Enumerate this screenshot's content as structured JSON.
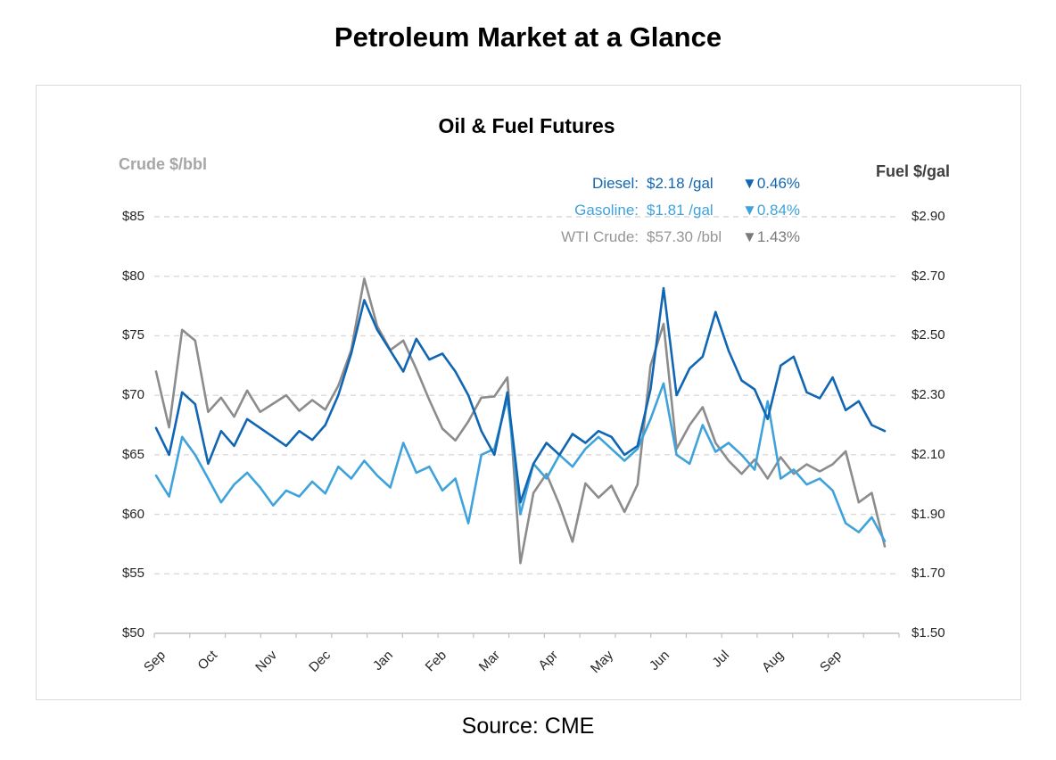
{
  "header": {
    "title": "Petroleum Market at a Glance"
  },
  "footer": {
    "source": "Source: CME"
  },
  "chart_data": {
    "type": "line",
    "title": "Oil & Fuel Futures",
    "grid": "dashed-horizontal",
    "categories": [
      "Sep",
      "Oct",
      "Nov",
      "Dec",
      "Jan",
      "Feb",
      "Mar",
      "Apr",
      "May",
      "Jun",
      "Jul",
      "Aug",
      "Sep"
    ],
    "left_axis": {
      "label": "Crude $/bbl",
      "ylim": [
        50,
        85
      ],
      "tick_values": [
        85,
        80,
        75,
        70,
        65,
        60,
        55,
        50
      ],
      "tick_labels": [
        "$85",
        "$80",
        "$75",
        "$70",
        "$65",
        "$60",
        "$55",
        "$50"
      ]
    },
    "right_axis": {
      "label": "Fuel $/gal",
      "ylim": [
        1.5,
        2.9
      ],
      "tick_values": [
        2.9,
        2.7,
        2.5,
        2.3,
        2.1,
        1.9,
        1.7,
        1.5
      ],
      "tick_labels": [
        "$2.90",
        "$2.70",
        "$2.50",
        "$2.30",
        "$2.10",
        "$1.90",
        "$1.70",
        "$1.50"
      ]
    },
    "colors": {
      "diesel": "#1066b2",
      "gasoline": "#3fa3db",
      "wti": "#8c8c8c",
      "wti_legend_text": "#969696",
      "gridline": "#d9d9d9",
      "axis_line": "#bfbfbf"
    },
    "legend": [
      {
        "series": "diesel",
        "label": "Diesel:",
        "value": "$2.18 /gal",
        "change": "▼0.46%"
      },
      {
        "series": "gasoline",
        "label": "Gasoline:",
        "value": "$1.81 /gal",
        "change": "▼0.84%"
      },
      {
        "series": "wti",
        "label": "WTI Crude:",
        "value": "$57.30 /bbl",
        "change": "▼1.43%"
      }
    ],
    "series": [
      {
        "id": "wti",
        "name": "WTI Crude",
        "axis": "left",
        "unit": "$/bbl",
        "values": [
          72.0,
          67.3,
          75.5,
          74.6,
          68.6,
          69.8,
          68.2,
          70.4,
          68.6,
          69.3,
          70.0,
          68.7,
          69.6,
          68.8,
          70.8,
          73.8,
          79.8,
          75.8,
          73.8,
          74.6,
          72.2,
          69.6,
          67.2,
          66.2,
          67.8,
          69.8,
          69.9,
          71.5,
          55.9,
          61.8,
          63.4,
          60.8,
          57.7,
          62.6,
          61.4,
          62.4,
          60.2,
          62.5,
          72.5,
          76.0,
          65.5,
          67.5,
          69.0,
          66.0,
          64.5,
          63.4,
          64.6,
          63.0,
          64.8,
          63.4,
          64.2,
          63.6,
          64.2,
          65.3,
          61.0,
          61.8,
          57.3
        ]
      },
      {
        "id": "gasoline",
        "name": "Gasoline",
        "axis": "right",
        "unit": "$/gal",
        "values": [
          2.03,
          1.96,
          2.16,
          2.1,
          2.02,
          1.94,
          2.0,
          2.04,
          1.99,
          1.93,
          1.98,
          1.96,
          2.01,
          1.97,
          2.06,
          2.02,
          2.08,
          2.03,
          1.99,
          2.14,
          2.04,
          2.06,
          1.98,
          2.02,
          1.87,
          2.1,
          2.12,
          2.29,
          1.9,
          2.07,
          2.02,
          2.1,
          2.06,
          2.12,
          2.16,
          2.12,
          2.08,
          2.12,
          2.22,
          2.34,
          2.1,
          2.07,
          2.2,
          2.11,
          2.14,
          2.1,
          2.05,
          2.28,
          2.02,
          2.05,
          2.0,
          2.02,
          1.98,
          1.87,
          1.84,
          1.89,
          1.81
        ]
      },
      {
        "id": "diesel",
        "name": "Diesel",
        "axis": "right",
        "unit": "$/gal",
        "values": [
          2.19,
          2.1,
          2.31,
          2.27,
          2.07,
          2.18,
          2.13,
          2.22,
          2.19,
          2.16,
          2.13,
          2.18,
          2.15,
          2.2,
          2.3,
          2.44,
          2.62,
          2.52,
          2.45,
          2.38,
          2.49,
          2.42,
          2.44,
          2.38,
          2.3,
          2.18,
          2.1,
          2.31,
          1.94,
          2.07,
          2.14,
          2.1,
          2.17,
          2.14,
          2.18,
          2.16,
          2.1,
          2.13,
          2.32,
          2.66,
          2.3,
          2.39,
          2.43,
          2.58,
          2.45,
          2.35,
          2.32,
          2.22,
          2.4,
          2.43,
          2.31,
          2.29,
          2.36,
          2.25,
          2.28,
          2.2,
          2.18
        ]
      }
    ]
  }
}
